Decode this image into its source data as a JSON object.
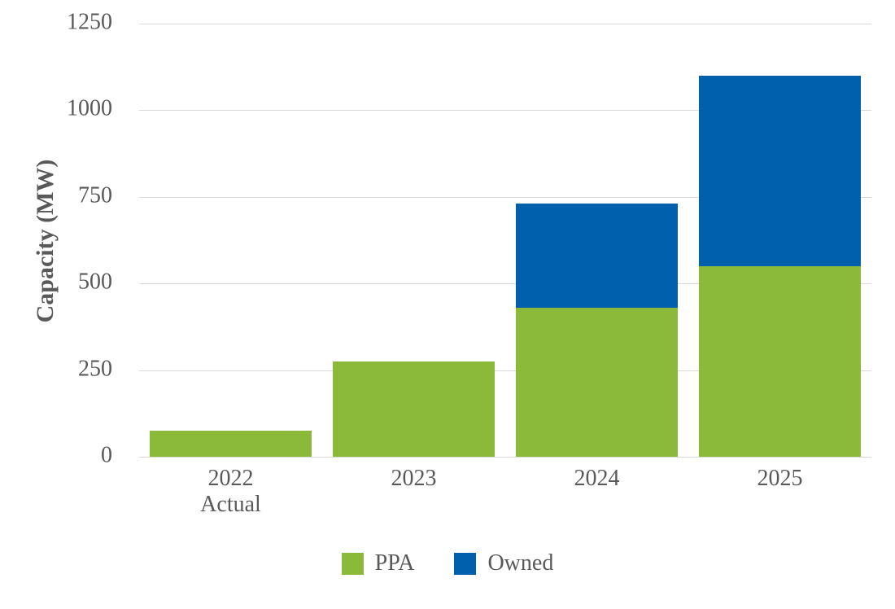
{
  "chart_data": {
    "type": "bar",
    "stacked": true,
    "title": "",
    "xlabel": "",
    "ylabel": "Capacity (MW)",
    "categories": [
      "2022\nActual",
      "2023",
      "2024",
      "2025"
    ],
    "series": [
      {
        "name": "PPA",
        "color": "#8BBA3B",
        "values": [
          75,
          275,
          430,
          550
        ]
      },
      {
        "name": "Owned",
        "color": "#0060AE",
        "values": [
          0,
          0,
          300,
          550
        ]
      }
    ],
    "stack_totals": [
      75,
      275,
      730,
      1100
    ],
    "ylim": [
      0,
      1250
    ],
    "yticks": [
      0,
      250,
      500,
      750,
      1000,
      1250
    ],
    "grid": true,
    "legend_position": "bottom",
    "colors": {
      "text": "#595959",
      "gridline": "#D9D9D9",
      "background": "#FFFFFF"
    }
  }
}
